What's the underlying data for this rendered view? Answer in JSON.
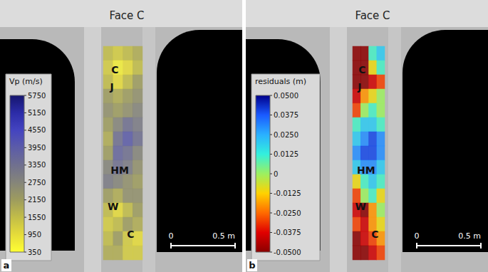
{
  "chart_data": [
    {
      "type": "heatmap",
      "panel": "a",
      "title": "Face C",
      "tick_labels": false,
      "colorbar_label": "Vp (m/s)",
      "colorbar_range": [
        350,
        5750
      ],
      "colorbar_ticks": [
        5750,
        5150,
        4550,
        3950,
        3350,
        2750,
        2150,
        1550,
        950,
        350
      ],
      "colors": [
        "#ffff33",
        "#e6dc3a",
        "#c2bd48",
        "#9e9c5e",
        "#85857a",
        "#70708f",
        "#5c5ca8",
        "#4444c0",
        "#2c2ca8",
        "#15156e"
      ],
      "cells": [
        [
          1550,
          1250,
          1550,
          1850
        ],
        [
          1250,
          650,
          950,
          1550
        ],
        [
          1550,
          950,
          1550,
          2150
        ],
        [
          2150,
          1850,
          2150,
          2450
        ],
        [
          2450,
          2150,
          2450,
          2750
        ],
        [
          2150,
          2750,
          3350,
          3050
        ],
        [
          1850,
          3350,
          3950,
          3350
        ],
        [
          2150,
          3650,
          3350,
          2750
        ],
        [
          2750,
          3350,
          3050,
          2450
        ],
        [
          3050,
          2750,
          2450,
          2150
        ],
        [
          2150,
          1850,
          2450,
          2450
        ],
        [
          1550,
          950,
          1550,
          2150
        ],
        [
          1250,
          1550,
          2150,
          1850
        ],
        [
          1550,
          2150,
          1250,
          950
        ],
        [
          1850,
          1850,
          1250,
          1250
        ]
      ],
      "annotations": [
        "C",
        "J",
        "HM",
        "W",
        "C"
      ],
      "scale_bar": [
        0,
        {
          "value": 0.5,
          "label": "0.5 m"
        }
      ]
    },
    {
      "type": "heatmap",
      "panel": "b",
      "title": "Face C",
      "tick_labels": false,
      "colorbar_label": "residuals (m)",
      "colorbar_range": [
        -0.05,
        0.05
      ],
      "colorbar_ticks": [
        {
          "value": 0.05,
          "label": "0.0500"
        },
        0.0375,
        {
          "value": 0.025,
          "label": "0.0250"
        },
        0.0125,
        0,
        -0.0125,
        {
          "value": -0.025,
          "label": "-0.0250"
        },
        -0.0375,
        {
          "value": -0.05,
          "label": "-0.0500"
        }
      ],
      "colors": [
        "#8b0000",
        "#e00000",
        "#ff6a00",
        "#ffd200",
        "#9cf060",
        "#33f0dd",
        "#2ab0ff",
        "#1a5aff",
        "#00008b"
      ],
      "cells": [
        [
          -0.05,
          -0.05,
          0.01,
          0.02
        ],
        [
          -0.05,
          -0.05,
          -0.01,
          0.01
        ],
        [
          -0.05,
          -0.05,
          -0.04,
          -0.03
        ],
        [
          -0.04,
          -0.02,
          -0.01,
          0.0
        ],
        [
          -0.03,
          0.0,
          0.01,
          0.0
        ],
        [
          0.01,
          0.02,
          0.02,
          0.01
        ],
        [
          0.02,
          0.03,
          0.04,
          0.03
        ],
        [
          0.03,
          0.04,
          0.04,
          0.03
        ],
        [
          0.02,
          0.03,
          0.03,
          0.02
        ],
        [
          -0.01,
          0.01,
          0.02,
          0.01
        ],
        [
          -0.03,
          0.0,
          0.01,
          -0.01
        ],
        [
          -0.04,
          -0.05,
          -0.02,
          0.0
        ],
        [
          -0.03,
          -0.04,
          -0.02,
          -0.01
        ],
        [
          -0.05,
          -0.04,
          -0.03,
          -0.02
        ],
        [
          -0.05,
          -0.05,
          -0.04,
          -0.03
        ]
      ],
      "annotations": [
        "C",
        "J",
        "HM",
        "W",
        "C"
      ],
      "scale_bar": [
        0,
        {
          "value": 0.5,
          "label": "0.5 m"
        }
      ]
    }
  ]
}
